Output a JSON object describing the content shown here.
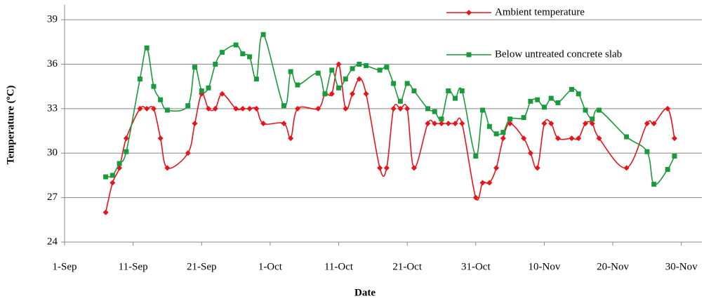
{
  "chart_data": {
    "type": "line",
    "x_label": "Date",
    "y_label": "Temperature (ºC)",
    "xlim": [
      "1-Sep",
      "3-Dec"
    ],
    "xticks": [
      "1-Sep",
      "11-Sep",
      "21-Sep",
      "1-Oct",
      "11-Oct",
      "21-Oct",
      "31-Oct",
      "10-Nov",
      "20-Nov",
      "30-Nov"
    ],
    "ylim": [
      24,
      40
    ],
    "yticks": [
      24,
      27,
      30,
      33,
      36,
      39
    ],
    "grid": true,
    "legend": "upper right",
    "series": [
      {
        "name": "Ambient  temperature",
        "color": "#e8141b",
        "marker": "diamond",
        "x": [
          "7-Sep",
          "8-Sep",
          "9-Sep",
          "10-Sep",
          "12-Sep",
          "13-Sep",
          "14-Sep",
          "15-Sep",
          "16-Sep",
          "19-Sep",
          "20-Sep",
          "21-Sep",
          "22-Sep",
          "23-Sep",
          "24-Sep",
          "26-Sep",
          "27-Sep",
          "28-Sep",
          "29-Sep",
          "30-Sep",
          "3-Oct",
          "4-Oct",
          "5-Oct",
          "8-Oct",
          "9-Oct",
          "10-Oct",
          "11-Oct",
          "12-Oct",
          "13-Oct",
          "14-Oct",
          "15-Oct",
          "17-Oct",
          "18-Oct",
          "19-Oct",
          "20-Oct",
          "21-Oct",
          "22-Oct",
          "24-Oct",
          "25-Oct",
          "26-Oct",
          "27-Oct",
          "28-Oct",
          "29-Oct",
          "31-Oct",
          "1-Nov",
          "2-Nov",
          "3-Nov",
          "4-Nov",
          "5-Nov",
          "7-Nov",
          "8-Nov",
          "9-Nov",
          "10-Nov",
          "11-Nov",
          "12-Nov",
          "14-Nov",
          "15-Nov",
          "16-Nov",
          "17-Nov",
          "18-Nov",
          "22-Nov",
          "25-Nov",
          "26-Nov",
          "28-Nov",
          "29-Nov"
        ],
        "values": [
          26,
          28,
          29,
          31,
          33,
          33,
          33,
          31,
          29,
          30,
          32,
          34,
          33,
          33,
          34,
          33,
          33,
          33,
          33,
          32,
          32,
          31,
          33,
          33,
          34,
          34,
          36,
          33,
          34,
          35,
          34,
          29,
          29,
          33,
          33,
          33,
          29,
          32,
          32,
          32,
          32,
          32,
          32,
          27,
          28,
          28,
          29,
          31,
          32,
          31,
          30,
          29,
          32,
          32,
          31,
          31,
          31,
          32,
          32,
          31,
          29,
          32,
          32,
          33,
          31
        ]
      },
      {
        "name": "Below untreated concrete slab",
        "color": "#1a9a3c",
        "marker": "square",
        "x": [
          "7-Sep",
          "8-Sep",
          "9-Sep",
          "10-Sep",
          "12-Sep",
          "13-Sep",
          "14-Sep",
          "15-Sep",
          "16-Sep",
          "19-Sep",
          "20-Sep",
          "21-Sep",
          "22-Sep",
          "23-Sep",
          "24-Sep",
          "26-Sep",
          "27-Sep",
          "28-Sep",
          "29-Sep",
          "30-Sep",
          "3-Oct",
          "4-Oct",
          "5-Oct",
          "8-Oct",
          "9-Oct",
          "10-Oct",
          "11-Oct",
          "12-Oct",
          "13-Oct",
          "14-Oct",
          "15-Oct",
          "17-Oct",
          "18-Oct",
          "19-Oct",
          "20-Oct",
          "21-Oct",
          "22-Oct",
          "24-Oct",
          "25-Oct",
          "26-Oct",
          "27-Oct",
          "28-Oct",
          "29-Oct",
          "31-Oct",
          "1-Nov",
          "2-Nov",
          "3-Nov",
          "4-Nov",
          "5-Nov",
          "7-Nov",
          "8-Nov",
          "9-Nov",
          "10-Nov",
          "11-Nov",
          "12-Nov",
          "14-Nov",
          "15-Nov",
          "16-Nov",
          "17-Nov",
          "18-Nov",
          "22-Nov",
          "25-Nov",
          "26-Nov",
          "28-Nov",
          "29-Nov"
        ],
        "values": [
          28.4,
          28.5,
          29.3,
          30.1,
          35,
          37.1,
          34.5,
          33.6,
          32.9,
          33.2,
          35.8,
          34.2,
          34.4,
          36,
          36.8,
          37.3,
          36.7,
          36.5,
          35,
          38,
          33.2,
          35.5,
          34.6,
          35.4,
          34,
          35.6,
          34.4,
          35,
          35.7,
          36,
          35.9,
          35.6,
          35.8,
          34.7,
          33.5,
          34.7,
          34.2,
          33,
          32.8,
          32.3,
          34.2,
          33.7,
          34.2,
          29.8,
          32.9,
          31.8,
          31.3,
          31.4,
          32.3,
          32.4,
          33.5,
          33.6,
          33.1,
          33.7,
          33.4,
          34.3,
          34,
          32.9,
          32.3,
          32.9,
          31.1,
          30.1,
          27.9,
          28.9,
          29.8
        ]
      }
    ]
  }
}
